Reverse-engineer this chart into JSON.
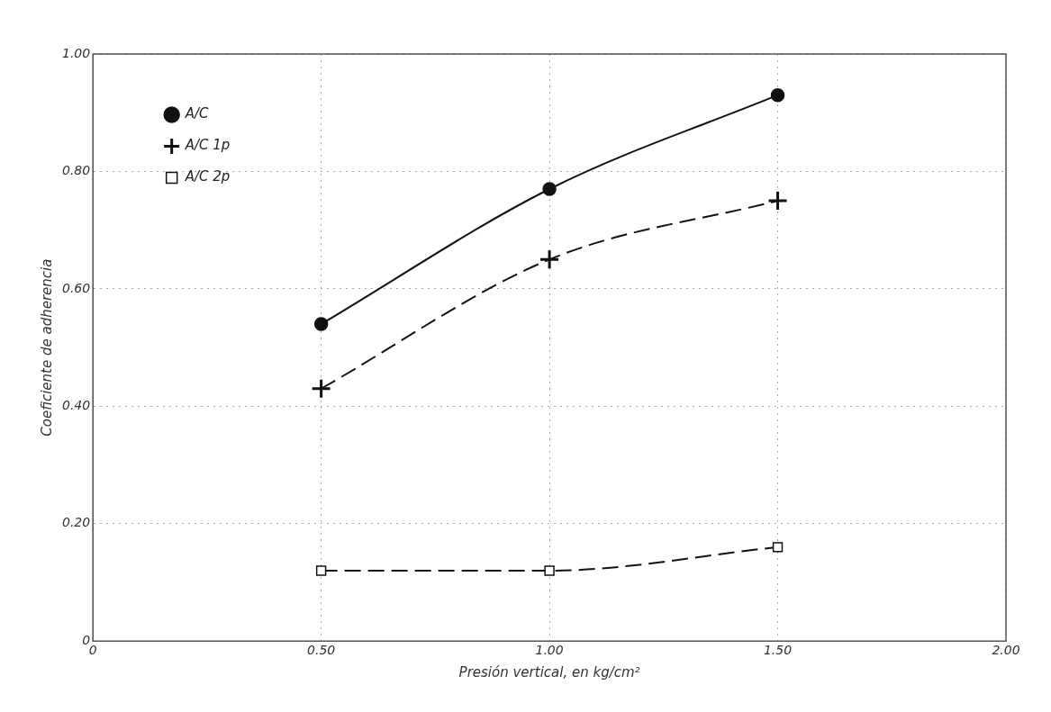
{
  "chart_data": {
    "type": "line",
    "xlabel": "Presión vertical, en kg/cm²",
    "ylabel": "Coeficiente de adherencia",
    "x": [
      0.5,
      1.0,
      1.5
    ],
    "series": [
      {
        "name": "A/C",
        "color": "#111111",
        "values": [
          0.54,
          0.77,
          0.93
        ],
        "marker": "circle",
        "line_style": "solid"
      },
      {
        "name": "A/C 1p",
        "color": "#111111",
        "values": [
          0.43,
          0.65,
          0.75
        ],
        "marker": "cross",
        "line_style": "dashed"
      },
      {
        "name": "A/C 2p",
        "color": "#111111",
        "values": [
          0.12,
          0.12,
          0.16
        ],
        "marker": "square",
        "line_style": "dashed"
      }
    ],
    "xlim": [
      0,
      2
    ],
    "xticks": [
      0,
      {
        "value": 0.5,
        "label": "0.50"
      },
      {
        "value": 1,
        "label": "1.00"
      },
      {
        "value": 1.5,
        "label": "1.50"
      },
      {
        "value": 2,
        "label": "2.00"
      }
    ],
    "ylim": [
      0,
      1
    ],
    "yticks": [
      0,
      {
        "value": 0.2,
        "label": "0.20"
      },
      {
        "value": 0.4,
        "label": "0.40"
      },
      {
        "value": 0.6,
        "label": "0.60"
      },
      {
        "value": 0.8,
        "label": "0.80"
      },
      {
        "value": 1,
        "label": "1.00"
      }
    ],
    "grid": true,
    "legend": "top left"
  }
}
